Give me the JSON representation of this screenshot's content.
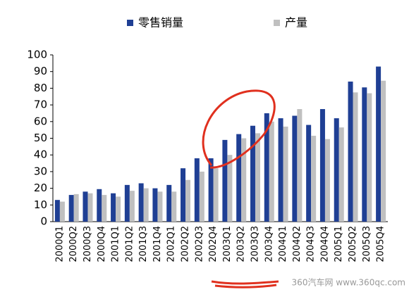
{
  "chart_data": {
    "type": "bar",
    "categories": [
      "2000Q1",
      "2000Q2",
      "2000Q3",
      "2000Q4",
      "2001Q1",
      "2001Q2",
      "2001Q3",
      "2001Q4",
      "2002Q1",
      "2002Q2",
      "2002Q3",
      "2002Q4",
      "2003Q1",
      "2003Q2",
      "2003Q3",
      "2003Q4",
      "2004Q1",
      "2004Q2",
      "2004Q3",
      "2004Q4",
      "2005Q1",
      "2005Q2",
      "2005Q3",
      "2005Q4"
    ],
    "series": [
      {
        "name": "零售销量",
        "color": "#1f3f94",
        "values": [
          13,
          16,
          18,
          19.5,
          17,
          22,
          23,
          20,
          22,
          32,
          38,
          38,
          49,
          52.5,
          57.5,
          65,
          62,
          63.5,
          58,
          67.5,
          62,
          84,
          80.5,
          93
        ]
      },
      {
        "name": "产量",
        "color": "#c0c0c0",
        "values": [
          12,
          16.5,
          17,
          16,
          15,
          18.5,
          20,
          18,
          18,
          25,
          30,
          32,
          40,
          50,
          53,
          60,
          57,
          67.5,
          51.5,
          49.5,
          56.5,
          77.5,
          77,
          84.5
        ]
      }
    ],
    "ylim": [
      0,
      100
    ],
    "yticks": [
      0,
      10,
      20,
      30,
      40,
      50,
      60,
      70,
      80,
      90,
      100
    ],
    "grid": false,
    "legend": "top",
    "watermark": "360汽车网 www.360qc.com"
  }
}
